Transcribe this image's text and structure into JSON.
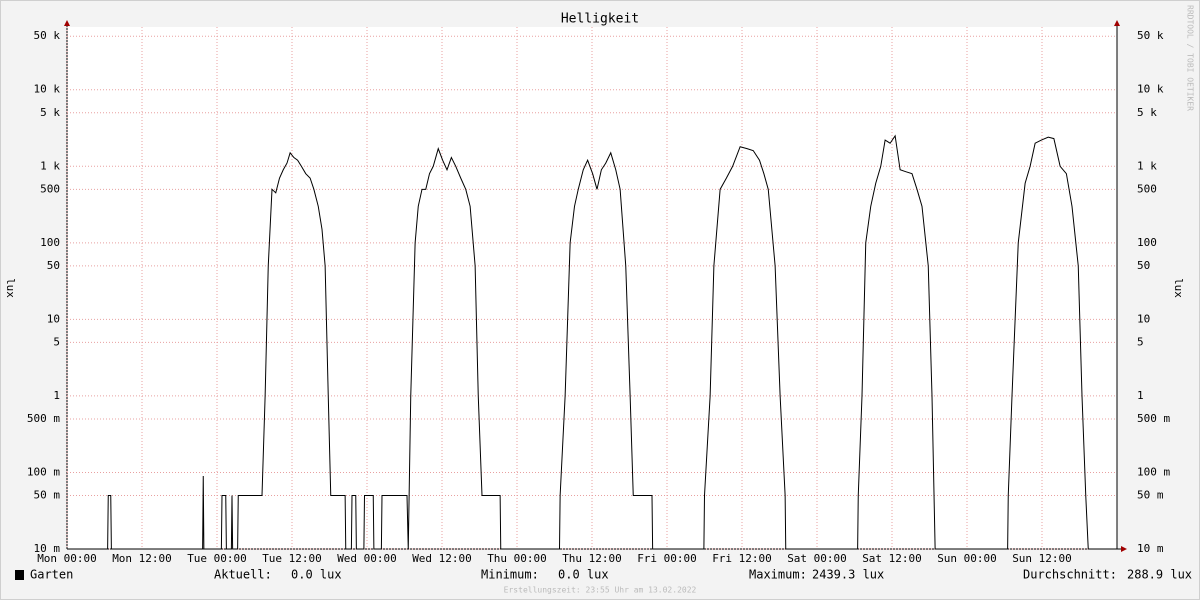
{
  "chart_data": {
    "type": "line",
    "title": "Helligkeit",
    "ylabel": "lux",
    "log_y": true,
    "grid": true,
    "watermark": "RRDTOOL / TOBI OETIKER",
    "footer": "Erstellungszeit: 23:55 Uhr am 13.02.2022",
    "xlim": [
      0,
      168
    ],
    "xticks": [
      {
        "value": 0,
        "label": "Mon 00:00"
      },
      {
        "value": 12,
        "label": "Mon 12:00"
      },
      {
        "value": 24,
        "label": "Tue 00:00"
      },
      {
        "value": 36,
        "label": "Tue 12:00"
      },
      {
        "value": 48,
        "label": "Wed 00:00"
      },
      {
        "value": 60,
        "label": "Wed 12:00"
      },
      {
        "value": 72,
        "label": "Thu 00:00"
      },
      {
        "value": 84,
        "label": "Thu 12:00"
      },
      {
        "value": 96,
        "label": "Fri 00:00"
      },
      {
        "value": 108,
        "label": "Fri 12:00"
      },
      {
        "value": 120,
        "label": "Sat 00:00"
      },
      {
        "value": 132,
        "label": "Sat 12:00"
      },
      {
        "value": 144,
        "label": "Sun 00:00"
      },
      {
        "value": 156,
        "label": "Sun 12:00"
      }
    ],
    "ylim": [
      0.01,
      66000
    ],
    "yticks": [
      {
        "value": 0.01,
        "label": "10 m"
      },
      {
        "value": 0.05,
        "label": "50 m"
      },
      {
        "value": 0.1,
        "label": "100 m"
      },
      {
        "value": 0.5,
        "label": "500 m"
      },
      1,
      5,
      10,
      50,
      100,
      500,
      {
        "value": 1000,
        "label": "1 k"
      },
      {
        "value": 5000,
        "label": "5 k"
      },
      {
        "value": 10000,
        "label": "10 k"
      },
      {
        "value": 50000,
        "label": "50 k"
      }
    ],
    "x": [
      0,
      6.5,
      6.6,
      7.0,
      7.1,
      21.7,
      21.8,
      21.9,
      24.7,
      24.8,
      25.4,
      25.5,
      26.3,
      26.4,
      26.5,
      27.3,
      27.4,
      31.2,
      31.7,
      32.2,
      32.8,
      33.4,
      34.0,
      34.6,
      35.2,
      35.7,
      36.3,
      36.9,
      37.5,
      38.2,
      38.9,
      39.5,
      40.2,
      40.8,
      41.3,
      41.8,
      42.2,
      44.5,
      44.6,
      45.5,
      45.6,
      46.2,
      46.3,
      47.5,
      47.6,
      49.0,
      49.1,
      50.3,
      50.4,
      54.4,
      54.6,
      55.0,
      55.7,
      56.2,
      56.8,
      57.4,
      58.0,
      58.6,
      59.4,
      60.1,
      60.8,
      61.5,
      62.2,
      63.0,
      63.8,
      64.5,
      65.3,
      65.8,
      66.4,
      69.3,
      69.4,
      78.8,
      78.9,
      79.7,
      80.5,
      81.2,
      81.8,
      82.6,
      83.3,
      84.1,
      84.8,
      85.5,
      86.2,
      87.0,
      87.8,
      88.5,
      89.4,
      90.1,
      90.6,
      93.6,
      93.7,
      101.9,
      102.0,
      102.9,
      103.5,
      104.5,
      105.5,
      106.5,
      107.7,
      108.8,
      109.8,
      110.8,
      111.5,
      112.2,
      113.3,
      114.1,
      114.9,
      115.0,
      126.5,
      126.6,
      127.2,
      127.8,
      128.6,
      129.4,
      130.2,
      130.9,
      131.7,
      132.5,
      133.3,
      134.2,
      135.2,
      136.0,
      136.8,
      137.8,
      138.4,
      138.9,
      150.5,
      150.6,
      151.2,
      152.2,
      153.3,
      154.1,
      154.9,
      155.9,
      157.0,
      157.9,
      158.9,
      159.9,
      160.8,
      161.8,
      162.4,
      163.0,
      163.4,
      168
    ],
    "series": [
      {
        "name": "Garten",
        "color": "#000000",
        "values": [
          0,
          0,
          0.05,
          0.05,
          0,
          0,
          0.09,
          0,
          0,
          0.05,
          0.05,
          0,
          0,
          0.05,
          0,
          0,
          0.05,
          0.05,
          1,
          50,
          500,
          450,
          700,
          900,
          1100,
          1500,
          1300,
          1200,
          1000,
          800,
          700,
          500,
          300,
          150,
          50,
          1,
          0.05,
          0.05,
          0,
          0,
          0.05,
          0.05,
          0,
          0,
          0.05,
          0.05,
          0,
          0,
          0.05,
          0.05,
          0,
          1,
          100,
          300,
          500,
          500,
          800,
          1000,
          1700,
          1200,
          900,
          1300,
          1000,
          700,
          500,
          300,
          50,
          1,
          0.05,
          0.05,
          0,
          0,
          0.05,
          1,
          100,
          300,
          500,
          900,
          1200,
          800,
          500,
          900,
          1100,
          1500,
          900,
          500,
          50,
          1,
          0.05,
          0.05,
          0,
          0,
          0.05,
          1,
          50,
          500,
          700,
          1000,
          1800,
          1700,
          1600,
          1200,
          800,
          500,
          50,
          1,
          0.05,
          0,
          0,
          0.05,
          1,
          100,
          300,
          600,
          1000,
          2200,
          2000,
          2500,
          900,
          850,
          800,
          500,
          300,
          50,
          1,
          0,
          0,
          0.05,
          1,
          100,
          600,
          1000,
          2000,
          2200,
          2400,
          2300,
          1000,
          800,
          300,
          50,
          1,
          0.05,
          0,
          0
        ]
      }
    ],
    "legend": [
      {
        "label": "Aktuell:",
        "value": "0.0 lux"
      },
      {
        "label": "Minimum:",
        "value": "0.0 lux"
      },
      {
        "label": "Maximum:",
        "value": "2439.3 lux"
      },
      {
        "label": "Durchschnitt:",
        "value": "288.9 lux"
      }
    ]
  }
}
